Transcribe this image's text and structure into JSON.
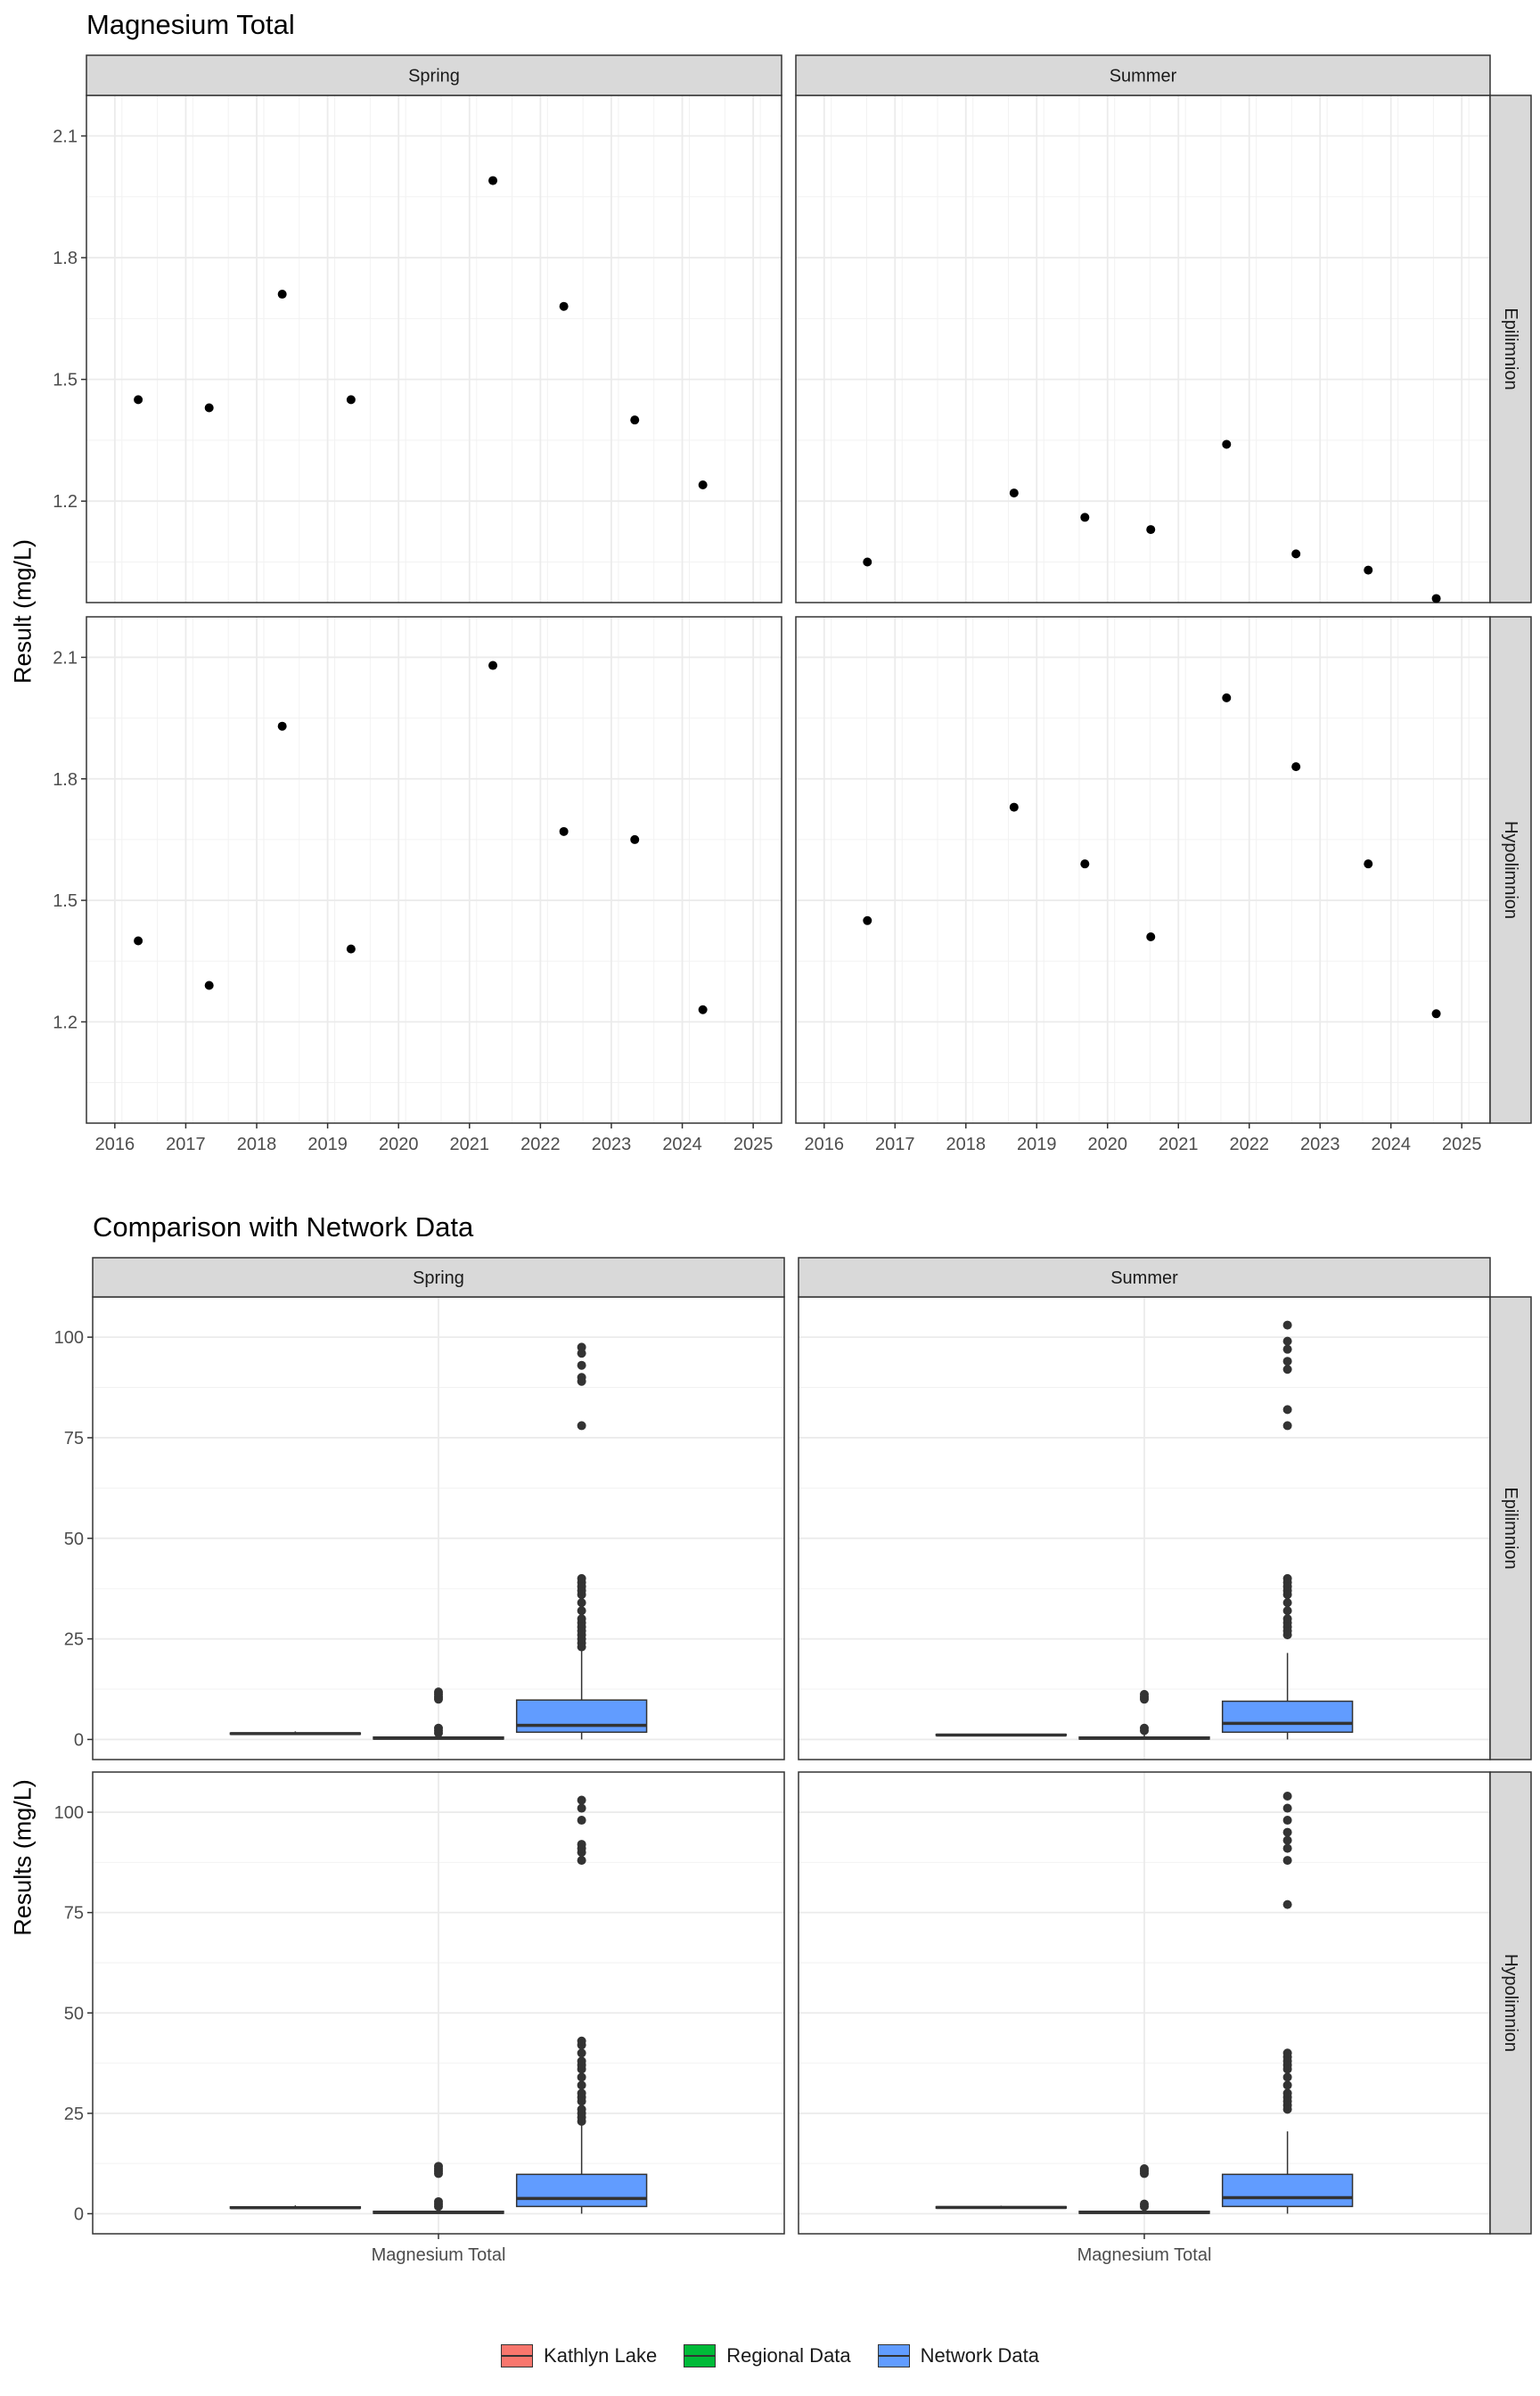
{
  "titles": {
    "top": "Magnesium Total",
    "bottom": "Comparison with Network Data"
  },
  "y_titles": {
    "top": "Result (mg/L)",
    "bottom": "Results (mg/L)"
  },
  "legend": [
    {
      "label": "Kathlyn Lake",
      "color": "#F8766D"
    },
    {
      "label": "Regional Data",
      "color": "#00BA38"
    },
    {
      "label": "Network Data",
      "color": "#619CFF"
    }
  ],
  "chart_data": [
    {
      "type": "scatter",
      "title": "Magnesium Total",
      "ylabel": "Result (mg/L)",
      "xlabel": "",
      "facet_cols": [
        "Spring",
        "Summer"
      ],
      "facet_rows": [
        "Epilimnion",
        "Hypolimnion"
      ],
      "xlim": [
        2015.6,
        2025.4
      ],
      "ylim": [
        0.95,
        2.2
      ],
      "x_ticks": [
        2016,
        2017,
        2018,
        2019,
        2020,
        2021,
        2022,
        2023,
        2024,
        2025
      ],
      "y_ticks": [
        1.2,
        1.5,
        1.8,
        2.1
      ],
      "grid": true,
      "point_color": "#000000",
      "panels": [
        {
          "col": "Spring",
          "row": "Epilimnion",
          "x": [
            2016.33,
            2017.33,
            2018.36,
            2019.33,
            2021.33,
            2022.33,
            2023.33,
            2024.29
          ],
          "y": [
            1.45,
            1.43,
            1.71,
            1.45,
            1.99,
            1.68,
            1.4,
            1.24
          ]
        },
        {
          "col": "Summer",
          "row": "Epilimnion",
          "x": [
            2016.61,
            2018.68,
            2019.68,
            2020.61,
            2021.68,
            2022.66,
            2023.68,
            2024.64
          ],
          "y": [
            1.05,
            1.22,
            1.16,
            1.13,
            1.34,
            1.07,
            1.03,
            0.96
          ]
        },
        {
          "col": "Spring",
          "row": "Hypolimnion",
          "x": [
            2016.33,
            2017.33,
            2018.36,
            2019.33,
            2021.33,
            2022.33,
            2023.33,
            2024.29
          ],
          "y": [
            1.4,
            1.29,
            1.93,
            1.38,
            2.08,
            1.67,
            1.65,
            1.23
          ]
        },
        {
          "col": "Summer",
          "row": "Hypolimnion",
          "x": [
            2016.61,
            2018.68,
            2019.68,
            2020.61,
            2021.68,
            2022.66,
            2023.68,
            2024.64
          ],
          "y": [
            1.45,
            1.73,
            1.59,
            1.41,
            2.0,
            1.83,
            1.59,
            1.22
          ]
        }
      ]
    },
    {
      "type": "box",
      "title": "Comparison with Network Data",
      "ylabel": "Results (mg/L)",
      "xlabel": "",
      "facet_cols": [
        "Spring",
        "Summer"
      ],
      "facet_rows": [
        "Epilimnion",
        "Hypolimnion"
      ],
      "x_label": "Magnesium Total",
      "ylim": [
        -5,
        110
      ],
      "y_ticks": [
        0,
        25,
        50,
        75,
        100
      ],
      "grid": true,
      "groups": [
        "Kathlyn Lake",
        "Regional Data",
        "Network Data"
      ],
      "panels": [
        {
          "col": "Spring",
          "row": "Epilimnion",
          "boxes": [
            {
              "group": "Kathlyn Lake",
              "q1": 1.3,
              "median": 1.45,
              "q3": 1.6,
              "lower": 1.2,
              "upper": 2.0,
              "outliers": []
            },
            {
              "group": "Regional Data",
              "q1": 0.1,
              "median": 0.3,
              "q3": 0.6,
              "lower": 0.0,
              "upper": 1.4,
              "outliers": [
                1.6,
                2.2,
                2.8,
                10.0,
                10.6,
                11.2,
                11.8
              ]
            },
            {
              "group": "Network Data",
              "q1": 1.8,
              "median": 3.5,
              "q3": 9.8,
              "lower": 0.0,
              "upper": 22.0,
              "outliers": [
                23,
                24,
                25,
                26,
                27,
                28,
                29,
                30,
                32,
                34,
                36,
                37,
                38,
                39,
                40,
                78,
                89,
                90,
                93,
                96,
                97.5
              ]
            }
          ]
        },
        {
          "col": "Summer",
          "row": "Epilimnion",
          "boxes": [
            {
              "group": "Kathlyn Lake",
              "q1": 1.0,
              "median": 1.1,
              "q3": 1.25,
              "lower": 0.96,
              "upper": 1.34,
              "outliers": []
            },
            {
              "group": "Regional Data",
              "q1": 0.1,
              "median": 0.3,
              "q3": 0.6,
              "lower": 0.0,
              "upper": 1.4,
              "outliers": [
                2.2,
                2.8,
                10.0,
                10.6,
                11.2
              ]
            },
            {
              "group": "Network Data",
              "q1": 1.8,
              "median": 4.0,
              "q3": 9.5,
              "lower": 0.0,
              "upper": 21.5,
              "outliers": [
                26,
                27,
                28,
                29,
                30,
                32,
                34,
                36,
                37,
                38,
                39,
                40,
                78,
                82,
                92,
                94,
                97,
                99,
                103
              ]
            }
          ]
        },
        {
          "col": "Spring",
          "row": "Hypolimnion",
          "boxes": [
            {
              "group": "Kathlyn Lake",
              "q1": 1.35,
              "median": 1.5,
              "q3": 1.7,
              "lower": 1.23,
              "upper": 2.08,
              "outliers": []
            },
            {
              "group": "Regional Data",
              "q1": 0.1,
              "median": 0.3,
              "q3": 0.6,
              "lower": 0.0,
              "upper": 1.4,
              "outliers": [
                1.8,
                2.4,
                3.0,
                10.0,
                10.6,
                11.2,
                11.8
              ]
            },
            {
              "group": "Network Data",
              "q1": 1.8,
              "median": 3.8,
              "q3": 9.8,
              "lower": 0.0,
              "upper": 22.0,
              "outliers": [
                23,
                24,
                25,
                26,
                28,
                29,
                30,
                32,
                34,
                36,
                37,
                38,
                40,
                42,
                43,
                88,
                90,
                91,
                92,
                98,
                101,
                103
              ]
            }
          ]
        },
        {
          "col": "Summer",
          "row": "Hypolimnion",
          "boxes": [
            {
              "group": "Kathlyn Lake",
              "q1": 1.4,
              "median": 1.55,
              "q3": 1.75,
              "lower": 1.22,
              "upper": 2.0,
              "outliers": []
            },
            {
              "group": "Regional Data",
              "q1": 0.1,
              "median": 0.3,
              "q3": 0.6,
              "lower": 0.0,
              "upper": 1.4,
              "outliers": [
                1.8,
                2.4,
                10.0,
                10.6,
                11.2
              ]
            },
            {
              "group": "Network Data",
              "q1": 1.8,
              "median": 4.0,
              "q3": 9.8,
              "lower": 0.0,
              "upper": 20.5,
              "outliers": [
                26,
                27,
                28,
                29,
                30,
                32,
                34,
                36,
                37,
                38,
                39,
                40,
                77,
                88,
                91,
                93,
                95,
                98,
                101,
                104
              ]
            }
          ]
        }
      ]
    }
  ]
}
